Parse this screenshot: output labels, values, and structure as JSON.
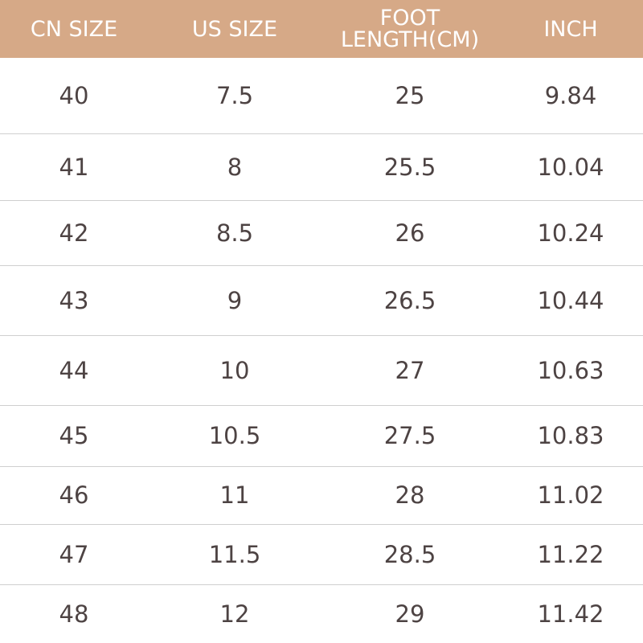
{
  "table": {
    "header": [
      "CN SIZE",
      "US SIZE",
      "FOOT LENGTH(CM)",
      "INCH"
    ],
    "rows": [
      [
        "40",
        "7.5",
        "25",
        "9.84"
      ],
      [
        "41",
        "8",
        "25.5",
        "10.04"
      ],
      [
        "42",
        "8.5",
        "26",
        "10.24"
      ],
      [
        "43",
        "9",
        "26.5",
        "10.44"
      ],
      [
        "44",
        "10",
        "27",
        "10.63"
      ],
      [
        "45",
        "10.5",
        "27.5",
        "10.83"
      ],
      [
        "46",
        "11",
        "28",
        "11.02"
      ],
      [
        "47",
        "11.5",
        "28.5",
        "11.22"
      ],
      [
        "48",
        "12",
        "29",
        "11.42"
      ]
    ]
  }
}
